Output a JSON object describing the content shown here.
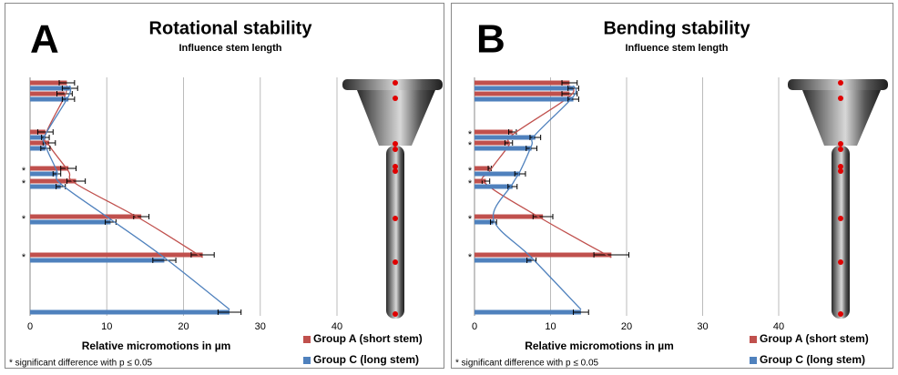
{
  "chart_data": [
    {
      "type": "bar",
      "label": "A",
      "title": "Rotational stability",
      "subtitle": "Influence stem length",
      "categories": [
        null,
        null,
        null,
        null,
        "*",
        "*",
        "*",
        "*",
        null
      ],
      "series": [
        {
          "name": "Group A (short stem)",
          "color": "#c0504d",
          "values": [
            4.8,
            4.5,
            2,
            2.5,
            5,
            6,
            14.5,
            22.5,
            null
          ],
          "errors": [
            1,
            1,
            1,
            0.8,
            1,
            1.2,
            1,
            1.5,
            null
          ]
        },
        {
          "name": "Group C (long stem)",
          "color": "#4f81bd",
          "values": [
            5.2,
            5,
            2,
            2,
            3.5,
            4,
            10.5,
            17.5,
            26
          ],
          "errors": [
            1,
            0.8,
            0.5,
            0.6,
            0.5,
            0.6,
            0.7,
            1.5,
            1.5
          ]
        }
      ],
      "xlim": [
        0,
        40
      ],
      "xticks": [
        0,
        10,
        20,
        30,
        40
      ],
      "grid": true,
      "xlabel": "Relative micromotions in µm",
      "note": "* significant difference with p ≤ 0.05"
    },
    {
      "type": "bar",
      "label": "B",
      "title": "Bending stability",
      "subtitle": "Influence stem length",
      "categories": [
        null,
        null,
        "*",
        "*",
        "*",
        "*",
        "*",
        "*",
        null
      ],
      "series": [
        {
          "name": "Group A (short stem)",
          "color": "#c0504d",
          "values": [
            12.5,
            12.5,
            5,
            4.5,
            2,
            1.5,
            9,
            18,
            null
          ],
          "errors": [
            1,
            1,
            0.5,
            0.5,
            0.2,
            0.5,
            1.3,
            2.3,
            null
          ]
        },
        {
          "name": "Group C (long stem)",
          "color": "#4f81bd",
          "values": [
            13,
            13,
            8,
            7.5,
            6,
            5,
            2.5,
            7.5,
            14
          ],
          "errors": [
            0.7,
            0.7,
            0.7,
            0.7,
            0.7,
            0.6,
            0.4,
            0.6,
            1
          ]
        }
      ],
      "xlim": [
        0,
        40
      ],
      "xticks": [
        0,
        10,
        20,
        30,
        40
      ],
      "grid": true,
      "xlabel": "Relative micromotions in µm",
      "note": "* significant difference with p ≤ 0.05"
    }
  ]
}
